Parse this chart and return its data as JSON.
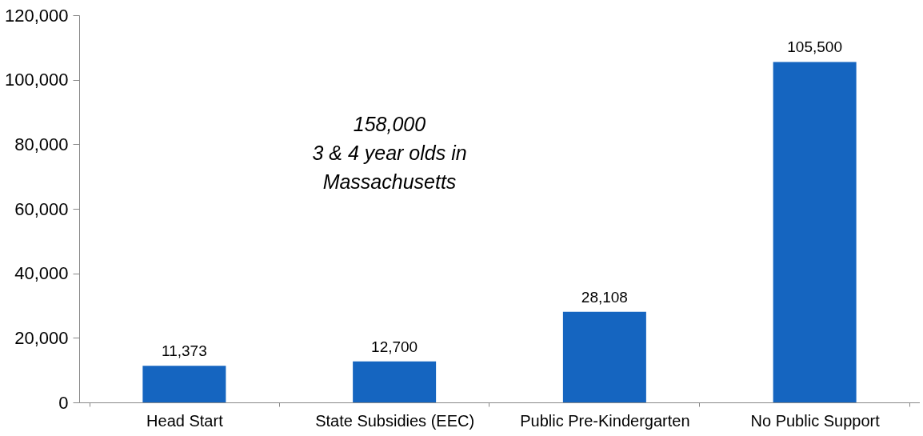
{
  "chart_data": {
    "type": "bar",
    "categories": [
      "Head Start",
      "State Subsidies (EEC)",
      "Public Pre-Kindergarten",
      "No Public Support"
    ],
    "values": [
      11373,
      12700,
      28108,
      105500
    ],
    "color": "#1565c0",
    "ylim": [
      0,
      120000
    ],
    "yticks": [
      {
        "value": 0,
        "label": "0"
      },
      {
        "value": 20000,
        "label": "20,000"
      },
      {
        "value": 40000,
        "label": "40,000"
      },
      {
        "value": 60000,
        "label": "60,000"
      },
      {
        "value": 80000,
        "label": "80,000"
      },
      {
        "value": 100000,
        "label": "100,000"
      },
      {
        "value": 120000,
        "label": "120,000"
      }
    ],
    "value_labels": [
      "11,373",
      "12,700",
      "28,108",
      "105,500"
    ],
    "annotations": [
      "158,000\n3 & 4 year olds in\nMassachusetts"
    ],
    "grid": false
  }
}
